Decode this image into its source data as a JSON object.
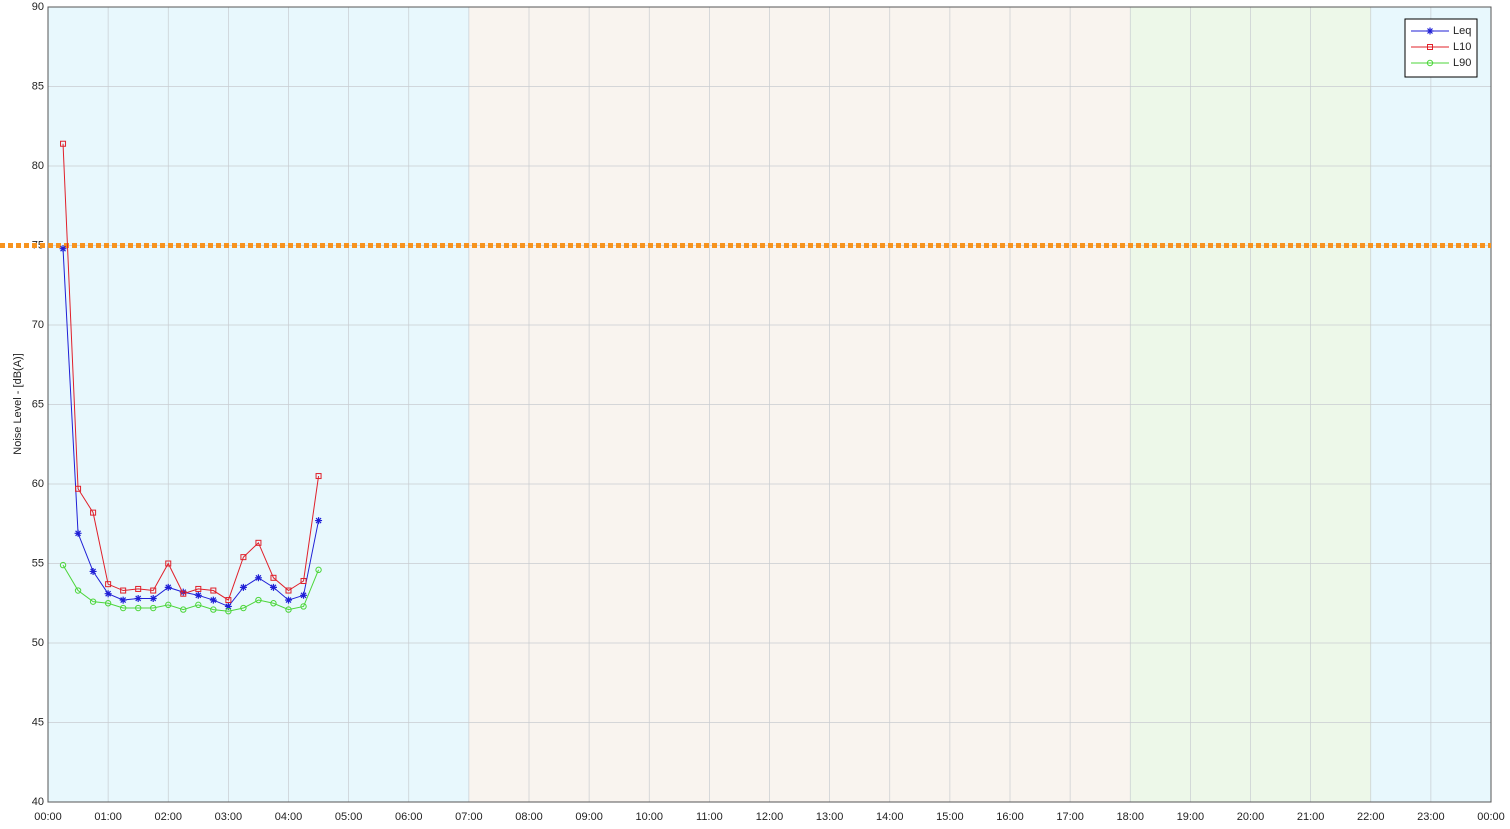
{
  "chart_data": {
    "type": "line",
    "y_label": "Noise Level - [dB(A)]",
    "x": [
      0.25,
      0.5,
      0.75,
      1,
      1.25,
      1.5,
      1.75,
      2,
      2.25,
      2.5,
      2.75,
      3,
      3.25,
      3.5,
      3.75,
      4,
      4.25,
      4.5
    ],
    "series": [
      {
        "name": "Leq",
        "color": "#1f1fd6",
        "marker": "star",
        "values": [
          74.8,
          56.9,
          54.5,
          53.1,
          52.7,
          52.8,
          52.8,
          53.5,
          53.2,
          53.0,
          52.7,
          52.3,
          53.5,
          54.1,
          53.5,
          52.7,
          53.0,
          57.7
        ]
      },
      {
        "name": "L10",
        "color": "#e0202a",
        "marker": "square",
        "values": [
          81.4,
          59.7,
          58.2,
          53.7,
          53.3,
          53.4,
          53.3,
          55.0,
          53.1,
          53.4,
          53.3,
          52.7,
          55.4,
          56.3,
          54.1,
          53.3,
          53.9,
          60.5
        ]
      },
      {
        "name": "L90",
        "color": "#4cd63a",
        "marker": "circle",
        "values": [
          54.9,
          53.3,
          52.6,
          52.5,
          52.2,
          52.2,
          52.2,
          52.4,
          52.1,
          52.4,
          52.1,
          52.0,
          52.2,
          52.7,
          52.5,
          52.1,
          52.3,
          54.6
        ]
      }
    ],
    "threshold": {
      "value": 75,
      "color": "#f7931e"
    },
    "bands": [
      {
        "start": 0,
        "end": 7,
        "color": "#e8f8fd"
      },
      {
        "start": 7,
        "end": 18,
        "color": "#f9f4ef"
      },
      {
        "start": 18,
        "end": 22,
        "color": "#edf8e9"
      },
      {
        "start": 22,
        "end": 24,
        "color": "#e8f8fd"
      }
    ],
    "xlim": [
      0,
      24
    ],
    "xticks": [
      {
        "value": 0,
        "label": "00:00"
      },
      {
        "value": 1,
        "label": "01:00"
      },
      {
        "value": 2,
        "label": "02:00"
      },
      {
        "value": 3,
        "label": "03:00"
      },
      {
        "value": 4,
        "label": "04:00"
      },
      {
        "value": 5,
        "label": "05:00"
      },
      {
        "value": 6,
        "label": "06:00"
      },
      {
        "value": 7,
        "label": "07:00"
      },
      {
        "value": 8,
        "label": "08:00"
      },
      {
        "value": 9,
        "label": "09:00"
      },
      {
        "value": 10,
        "label": "10:00"
      },
      {
        "value": 11,
        "label": "11:00"
      },
      {
        "value": 12,
        "label": "12:00"
      },
      {
        "value": 13,
        "label": "13:00"
      },
      {
        "value": 14,
        "label": "14:00"
      },
      {
        "value": 15,
        "label": "15:00"
      },
      {
        "value": 16,
        "label": "16:00"
      },
      {
        "value": 17,
        "label": "17:00"
      },
      {
        "value": 18,
        "label": "18:00"
      },
      {
        "value": 19,
        "label": "19:00"
      },
      {
        "value": 20,
        "label": "20:00"
      },
      {
        "value": 21,
        "label": "21:00"
      },
      {
        "value": 22,
        "label": "22:00"
      },
      {
        "value": 23,
        "label": "23:00"
      },
      {
        "value": 24,
        "label": "00:00"
      }
    ],
    "ylim": [
      40,
      90
    ],
    "yticks": [
      40,
      45,
      50,
      55,
      60,
      65,
      70,
      75,
      80,
      85,
      90
    ],
    "grid": true,
    "legend": "top-right"
  }
}
